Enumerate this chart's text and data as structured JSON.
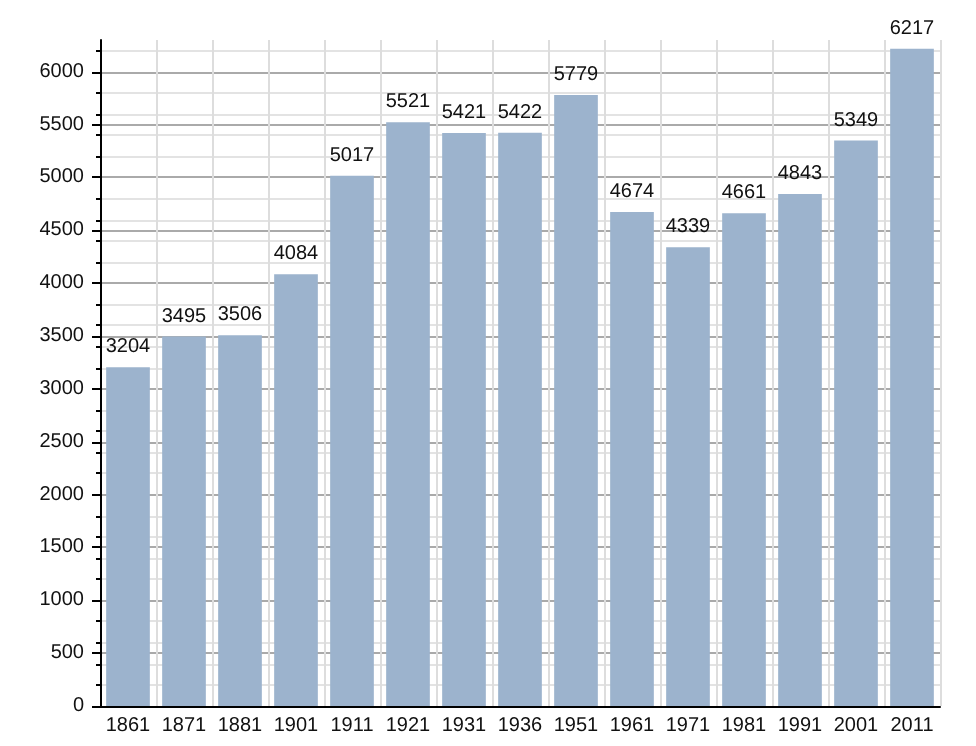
{
  "chart_data": {
    "type": "bar",
    "categories": [
      "1861",
      "1871",
      "1881",
      "1901",
      "1911",
      "1921",
      "1931",
      "1936",
      "1951",
      "1961",
      "1971",
      "1981",
      "1991",
      "2001",
      "2011"
    ],
    "values": [
      3204,
      3495,
      3506,
      4084,
      5017,
      5521,
      5421,
      5422,
      5779,
      4674,
      4339,
      4661,
      4843,
      5349,
      6217
    ],
    "color": "#9cb3cd",
    "ylim": [
      0,
      6300
    ],
    "yticks": [
      0,
      500,
      1000,
      1500,
      2000,
      2500,
      3000,
      3500,
      4000,
      4500,
      5000,
      5500,
      6000
    ],
    "grid": true,
    "data_labels": true
  }
}
